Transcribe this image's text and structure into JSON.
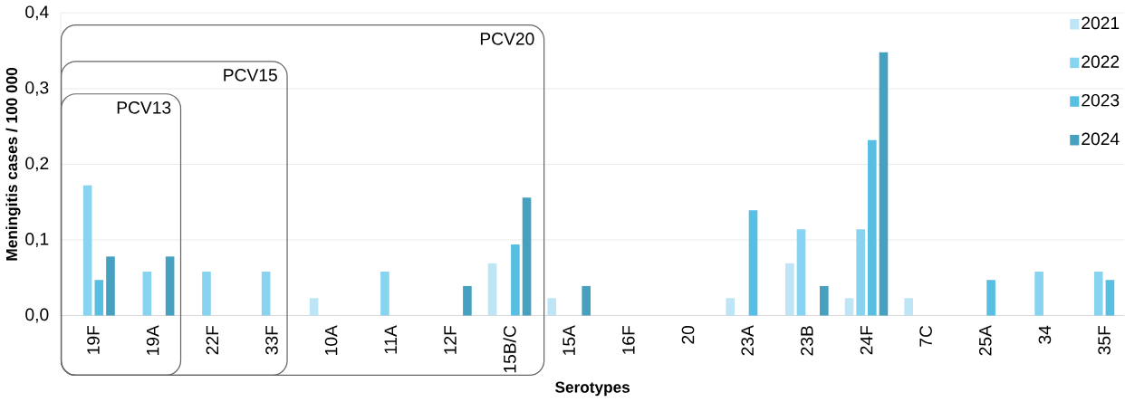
{
  "chart_data": {
    "type": "bar",
    "xlabel": "Serotypes",
    "ylabel": "Meningitis cases / 100 000",
    "categories": [
      "19F",
      "19A",
      "22F",
      "33F",
      "10A",
      "11A",
      "12F",
      "15B/C",
      "15A",
      "16F",
      "20",
      "23A",
      "23B",
      "24F",
      "7C",
      "25A",
      "34",
      "35F"
    ],
    "series": [
      {
        "name": "2021",
        "color": "#bde5f6",
        "values": [
          null,
          null,
          null,
          null,
          0.023,
          null,
          null,
          0.069,
          0.023,
          null,
          null,
          0.023,
          0.069,
          0.023,
          0.023,
          null,
          null,
          null
        ]
      },
      {
        "name": "2022",
        "color": "#87d3f0",
        "values": [
          0.172,
          0.058,
          0.058,
          0.058,
          null,
          0.058,
          null,
          null,
          null,
          null,
          null,
          null,
          0.114,
          0.114,
          null,
          null,
          0.058,
          0.058
        ]
      },
      {
        "name": "2023",
        "color": "#58bee2",
        "values": [
          0.047,
          null,
          null,
          null,
          null,
          null,
          null,
          0.094,
          null,
          null,
          null,
          0.139,
          null,
          0.232,
          null,
          0.047,
          null,
          0.047
        ]
      },
      {
        "name": "2024",
        "color": "#46a0c0",
        "values": [
          0.078,
          0.078,
          null,
          null,
          null,
          null,
          0.039,
          0.156,
          0.039,
          null,
          null,
          null,
          0.039,
          0.348,
          null,
          null,
          null,
          null
        ]
      }
    ],
    "ylim": [
      0,
      0.4
    ],
    "yticks": [
      {
        "value": 0,
        "label": "0,0"
      },
      {
        "value": 0.1,
        "label": "0,1"
      },
      {
        "value": 0.2,
        "label": "0,2"
      },
      {
        "value": 0.3,
        "label": "0,3"
      },
      {
        "value": 0.4,
        "label": "0,4"
      }
    ],
    "grid": "y",
    "legend": "top right",
    "annotations": [
      "PCV13",
      "PCV15",
      "PCV20"
    ]
  }
}
